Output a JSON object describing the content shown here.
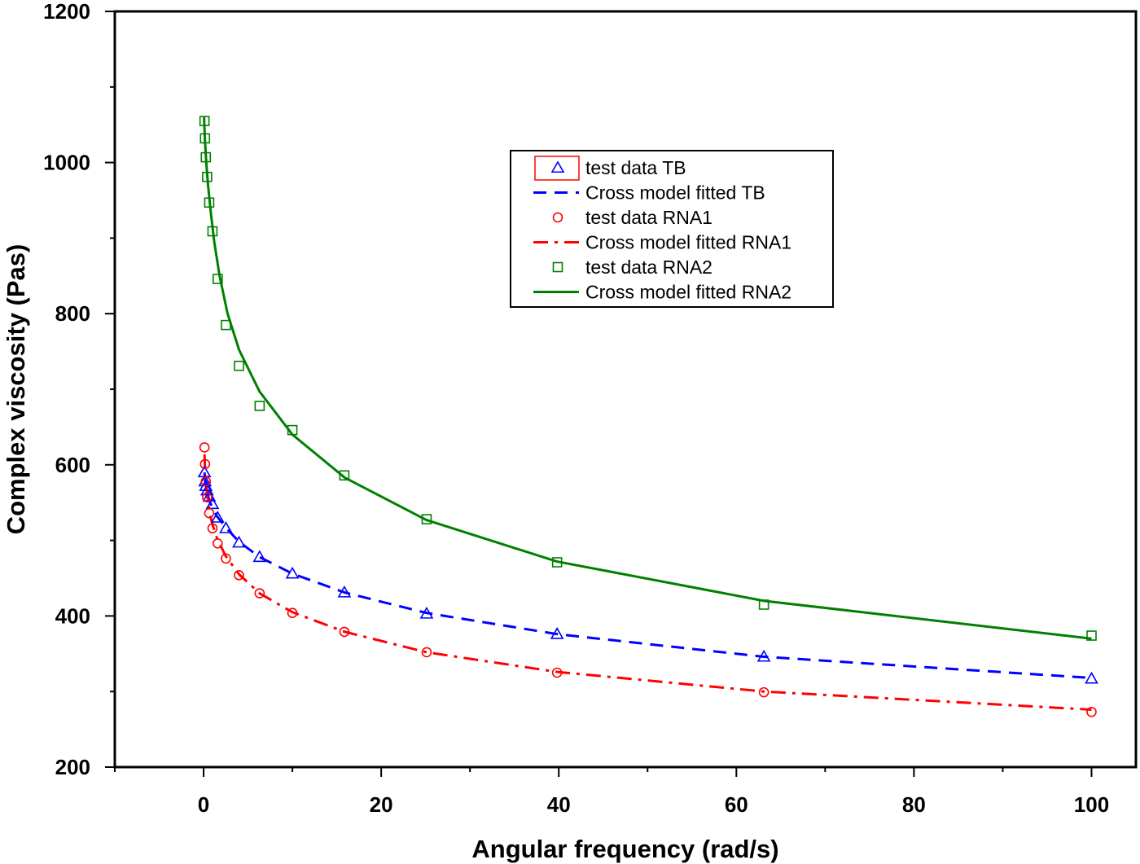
{
  "chart_data": {
    "type": "line",
    "title": "",
    "xlabel": "Angular frequency (rad/s)",
    "ylabel": "Complex viscosity (Pas)",
    "xlim": [
      -10,
      105
    ],
    "ylim": [
      200,
      1200
    ],
    "x_ticks": [
      0,
      20,
      40,
      60,
      80,
      100
    ],
    "y_ticks": [
      200,
      400,
      600,
      800,
      1000,
      1200
    ],
    "x_tick_labels": [
      "0",
      "20",
      "40",
      "60",
      "80",
      "100"
    ],
    "y_tick_labels": [
      "200",
      "400",
      "600",
      "800",
      "1000",
      "1200"
    ],
    "grid": false,
    "legend_position": "upper-middle",
    "colors": {
      "TB": "#0000ff",
      "RNA1": "#ff0000",
      "RNA2": "#008000"
    },
    "series": [
      {
        "name": "test data TB",
        "kind": "markers",
        "marker": "triangle",
        "color": "#0000ff",
        "x": [
          0.1,
          0.158,
          0.251,
          0.398,
          0.631,
          1.0,
          1.585,
          2.512,
          3.981,
          6.31,
          10,
          15.85,
          25.12,
          39.81,
          63.1,
          100
        ],
        "y": [
          590,
          578,
          572,
          566,
          558,
          548,
          530,
          516,
          497,
          478,
          456,
          431,
          403,
          376,
          346,
          317
        ]
      },
      {
        "name": "Cross model fitted TB",
        "kind": "line",
        "dash": "dashed",
        "color": "#0000ff",
        "x": [
          0.1,
          0.2,
          0.4,
          0.7,
          1.0,
          1.5,
          2.5,
          4.0,
          6.3,
          10,
          15.9,
          25.1,
          39.8,
          63.1,
          100
        ],
        "y": [
          590,
          576,
          563,
          551,
          543,
          532,
          517,
          498,
          478,
          456,
          431,
          404,
          376,
          346,
          318
        ]
      },
      {
        "name": "test data RNA1",
        "kind": "markers",
        "marker": "circle",
        "color": "#ff0000",
        "x": [
          0.1,
          0.158,
          0.251,
          0.398,
          0.631,
          1.0,
          1.585,
          2.512,
          3.981,
          6.31,
          10,
          15.85,
          25.12,
          39.81,
          63.1,
          100
        ],
        "y": [
          623,
          601,
          578,
          557,
          536,
          516,
          496,
          476,
          454,
          430,
          404,
          379,
          352,
          325,
          299,
          273
        ]
      },
      {
        "name": "Cross model fitted RNA1",
        "kind": "line",
        "dash": "dash-dot",
        "color": "#ff0000",
        "x": [
          0.1,
          0.2,
          0.4,
          0.7,
          1.0,
          1.5,
          2.5,
          4.0,
          6.3,
          10,
          15.9,
          25.1,
          39.8,
          63.1,
          100
        ],
        "y": [
          614,
          585,
          560,
          535,
          521,
          503,
          479,
          455,
          430,
          405,
          379,
          352,
          326,
          300,
          276
        ]
      },
      {
        "name": "test data  RNA2",
        "kind": "markers",
        "marker": "square",
        "color": "#008000",
        "x": [
          0.1,
          0.158,
          0.251,
          0.398,
          0.631,
          1.0,
          1.585,
          2.512,
          3.981,
          6.31,
          10,
          15.85,
          25.12,
          39.81,
          63.1,
          100
        ],
        "y": [
          1055,
          1032,
          1007,
          981,
          947,
          909,
          846,
          785,
          731,
          678,
          646,
          586,
          528,
          471,
          415,
          374
        ]
      },
      {
        "name": "Cross model fitted  RNA2",
        "kind": "line",
        "dash": "solid",
        "color": "#008000",
        "x": [
          0.05,
          0.15,
          0.3,
          0.5,
          0.8,
          1.2,
          1.8,
          2.7,
          4.0,
          6.3,
          10,
          15.9,
          25.1,
          39.8,
          63.1,
          100
        ],
        "y": [
          1060,
          1030,
          1000,
          970,
          935,
          895,
          850,
          800,
          752,
          697,
          640,
          583,
          527,
          472,
          420,
          370
        ]
      }
    ],
    "legend": [
      {
        "label": "test data TB",
        "series": 0
      },
      {
        "label": "Cross model fitted TB",
        "series": 1
      },
      {
        "label": "test data RNA1",
        "series": 2
      },
      {
        "label": "Cross model fitted RNA1",
        "series": 3
      },
      {
        "label": "test data  RNA2",
        "series": 4
      },
      {
        "label": "Cross model fitted  RNA2",
        "series": 5
      }
    ]
  }
}
